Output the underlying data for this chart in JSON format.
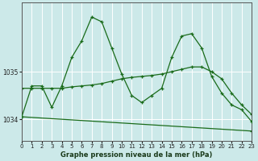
{
  "title": "Graphe pression niveau de la mer (hPa)",
  "bg_color": "#cce9e9",
  "line_color": "#1a6b1a",
  "grid_color": "#ffffff",
  "ylim": [
    1033.55,
    1036.45
  ],
  "xlim": [
    0,
    23
  ],
  "yticks": [
    1034,
    1035
  ],
  "xticks": [
    0,
    1,
    2,
    3,
    4,
    5,
    6,
    7,
    8,
    9,
    10,
    11,
    12,
    13,
    14,
    15,
    16,
    17,
    18,
    19,
    20,
    21,
    22,
    23
  ],
  "series1_x": [
    0,
    1,
    2,
    3,
    4,
    5,
    6,
    7,
    8,
    9,
    10,
    11,
    12,
    13,
    14,
    15,
    16,
    17,
    18,
    19,
    20,
    21,
    22,
    23
  ],
  "series1_y": [
    1034.05,
    1034.7,
    1034.7,
    1034.25,
    1034.7,
    1035.3,
    1035.65,
    1036.15,
    1036.05,
    1035.5,
    1034.95,
    1034.5,
    1034.35,
    1034.5,
    1034.65,
    1035.3,
    1035.75,
    1035.8,
    1035.5,
    1034.9,
    1034.55,
    1034.3,
    1034.2,
    1033.95
  ],
  "series2_x": [
    0,
    1,
    2,
    3,
    4,
    5,
    6,
    7,
    8,
    9,
    10,
    11,
    12,
    13,
    14,
    15,
    16,
    17,
    18,
    19,
    20,
    21,
    22,
    23
  ],
  "series2_y": [
    1034.65,
    1034.65,
    1034.65,
    1034.65,
    1034.65,
    1034.68,
    1034.7,
    1034.72,
    1034.75,
    1034.8,
    1034.85,
    1034.88,
    1034.9,
    1034.92,
    1034.95,
    1035.0,
    1035.05,
    1035.1,
    1035.1,
    1035.0,
    1034.85,
    1034.55,
    1034.3,
    1034.1
  ],
  "series3_x": [
    0,
    23
  ],
  "series3_y": [
    1034.05,
    1033.75
  ],
  "spine_color": "#555555"
}
